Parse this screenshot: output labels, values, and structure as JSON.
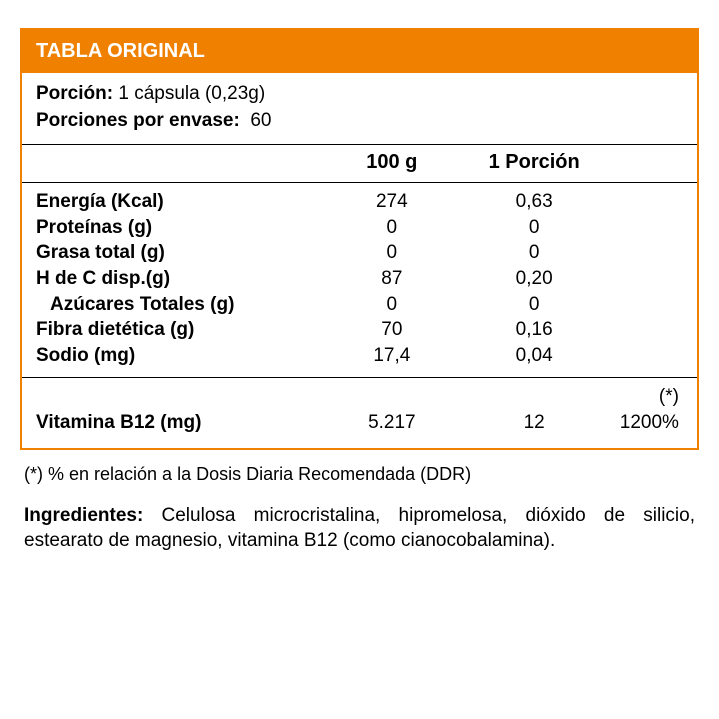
{
  "colors": {
    "accent": "#f08000",
    "border": "#000000",
    "text": "#000000",
    "header_text": "#ffffff",
    "background": "#ffffff"
  },
  "typography": {
    "base_font": "Arial",
    "base_size_pt": 14,
    "header_size_pt": 15,
    "header_weight": "bold"
  },
  "header": {
    "title": "TABLA ORIGINAL"
  },
  "serving": {
    "portion_label": "Porción:",
    "portion_value": "1 cápsula (0,23g)",
    "per_pack_label": "Porciones por envase:",
    "per_pack_value": "60"
  },
  "columns": {
    "per100": "100 g",
    "perPortion": "1 Porción"
  },
  "rows": [
    {
      "name": "Energía (Kcal)",
      "v100": "274",
      "vpor": "0,63",
      "indent": false
    },
    {
      "name": "Proteínas (g)",
      "v100": "0",
      "vpor": "0",
      "indent": false
    },
    {
      "name": "Grasa total (g)",
      "v100": "0",
      "vpor": "0",
      "indent": false
    },
    {
      "name": "H de C disp.(g)",
      "v100": "87",
      "vpor": "0,20",
      "indent": false
    },
    {
      "name": "Azúcares Totales (g)",
      "v100": "0",
      "vpor": "0",
      "indent": true
    },
    {
      "name": "Fibra dietética (g)",
      "v100": "70",
      "vpor": "0,16",
      "indent": false
    },
    {
      "name": "Sodio (mg)",
      "v100": "17,4",
      "vpor": "0,04",
      "indent": false
    }
  ],
  "vitamin": {
    "star": "(*)",
    "name": "Vitamina B12 (mg)",
    "v100": "5.217",
    "vpor": "12",
    "ddr": "1200%"
  },
  "footnote": "(*) % en relación a la Dosis Diaria Recomendada (DDR)",
  "ingredients": {
    "label": "Ingredientes:",
    "text": "Celulosa microcristalina, hipromelosa, dióxido de silicio, estearato de magnesio, vitamina B12 (como cianocobalamina)."
  }
}
